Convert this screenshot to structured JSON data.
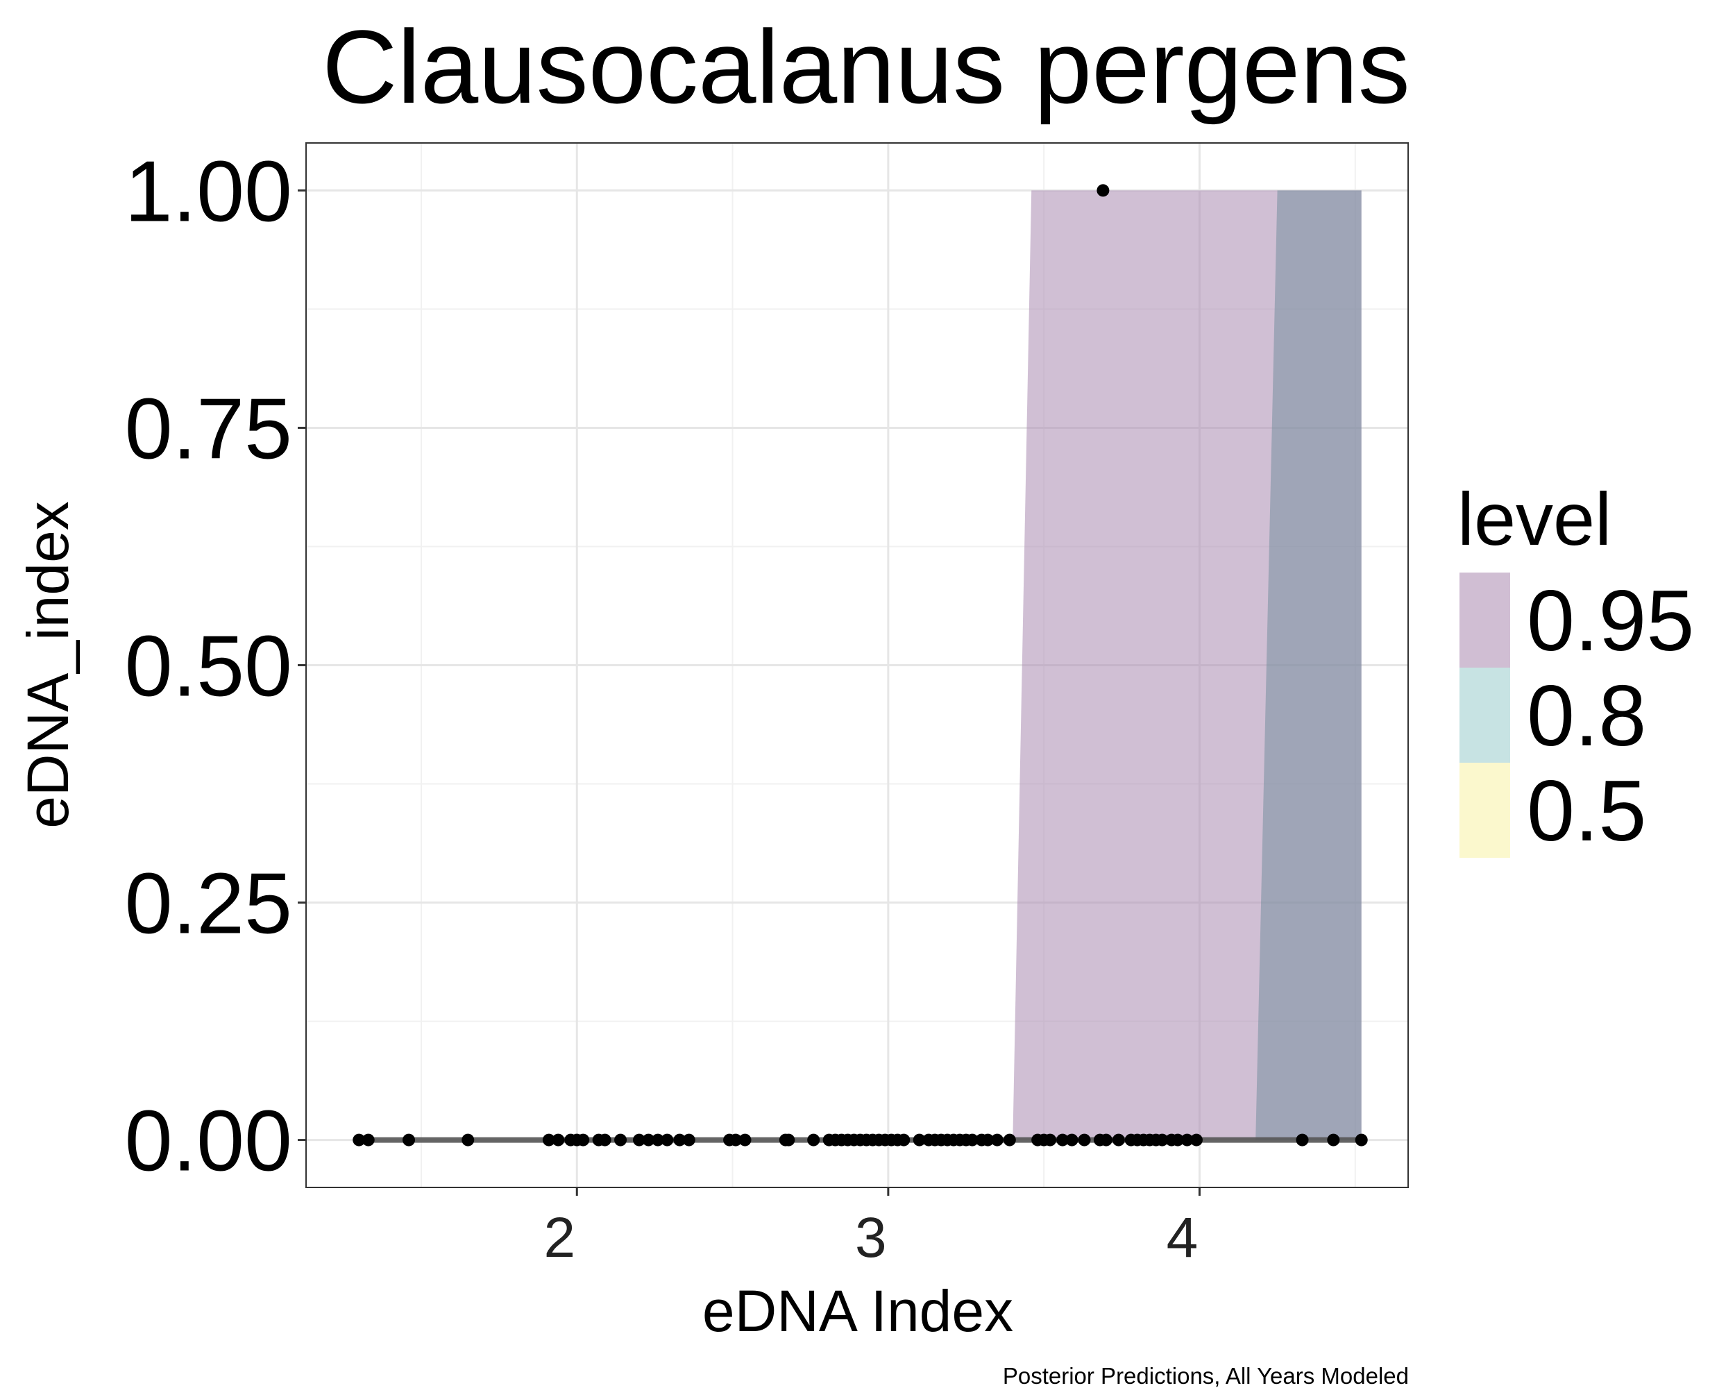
{
  "chart_data": {
    "type": "scatter",
    "title": "Clausocalanus pergens",
    "xlabel": "eDNA Index",
    "ylabel": "eDNA_index",
    "caption": "Posterior Predictions, All Years Modeled",
    "xlim": [
      1.13,
      4.67
    ],
    "ylim": [
      -0.05,
      1.05
    ],
    "x_ticks": [
      2,
      3,
      4
    ],
    "x_tick_labels": [
      "2",
      "3",
      "4"
    ],
    "y_ticks": [
      0.0,
      0.25,
      0.5,
      0.75,
      1.0
    ],
    "y_tick_labels": [
      "0.00",
      "0.25",
      "0.50",
      "0.75",
      "1.00"
    ],
    "grid": true,
    "legend": {
      "title": "level",
      "position": "right",
      "items": [
        {
          "label": "0.95",
          "color": "#d0bed3"
        },
        {
          "label": "0.8",
          "color": "#c7e3e3"
        },
        {
          "label": "0.5",
          "color": "#fbf8cd"
        }
      ]
    },
    "ribbons": [
      {
        "level": "0.95",
        "color": "#a98bb0",
        "opacity": 0.55,
        "x": [
          3.4,
          3.46,
          4.25,
          4.52
        ],
        "ymin": [
          0,
          0,
          0,
          0
        ],
        "ymax": [
          0,
          1,
          1,
          1
        ]
      },
      {
        "level": "0.8",
        "color": "#6e8c9a",
        "opacity": 0.5,
        "x": [
          4.18,
          4.25,
          4.52
        ],
        "ymin": [
          0,
          0,
          0
        ],
        "ymax": [
          0,
          1,
          1
        ]
      }
    ],
    "prediction_line": {
      "x": [
        1.3,
        4.52
      ],
      "y": [
        0,
        0
      ],
      "color": "#555555"
    },
    "points": {
      "color": "#000000",
      "y_value": 0,
      "x": [
        1.3,
        1.33,
        1.46,
        1.65,
        1.91,
        1.94,
        1.98,
        2.0,
        2.02,
        2.07,
        2.09,
        2.14,
        2.2,
        2.23,
        2.26,
        2.29,
        2.33,
        2.36,
        2.49,
        2.51,
        2.54,
        2.67,
        2.68,
        2.76,
        2.81,
        2.83,
        2.85,
        2.87,
        2.89,
        2.91,
        2.93,
        2.95,
        2.97,
        2.99,
        3.01,
        3.03,
        3.05,
        3.1,
        3.13,
        3.15,
        3.17,
        3.19,
        3.21,
        3.23,
        3.25,
        3.27,
        3.3,
        3.32,
        3.35,
        3.39,
        3.48,
        3.5,
        3.52,
        3.56,
        3.59,
        3.63,
        3.68,
        3.7,
        3.74,
        3.78,
        3.8,
        3.82,
        3.84,
        3.86,
        3.88,
        3.91,
        3.93,
        3.96,
        3.99,
        4.33,
        4.43,
        4.52
      ],
      "extra": [
        {
          "x": 3.69,
          "y": 1.0
        }
      ]
    }
  }
}
